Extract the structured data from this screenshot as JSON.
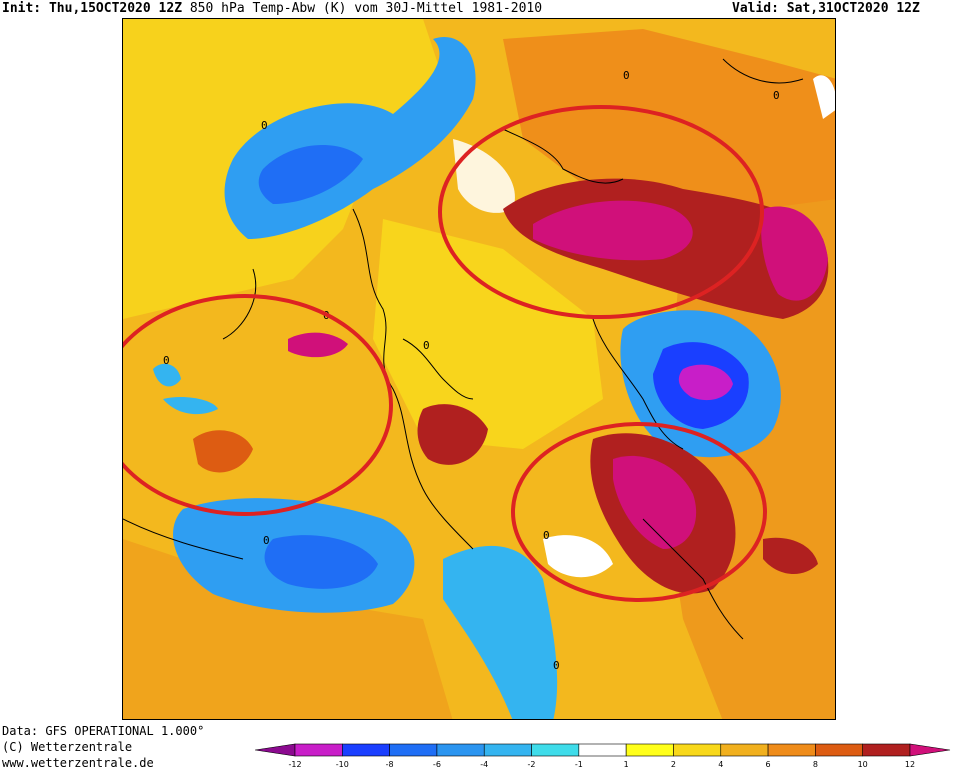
{
  "header": {
    "init_label": "Init:",
    "init_value": "Thu,15OCT2020 12Z",
    "title": "850 hPa Temp-Abw (K) vom 30J-Mittel 1981-2010",
    "valid": "Valid: Sat,31OCT2020 12Z"
  },
  "footer": {
    "line1": "Data: GFS OPERATIONAL 1.000°",
    "line2": "(C) Wetterzentrale",
    "line3": "www.wetterzentrale.de"
  },
  "colorbar": {
    "ticks": [
      "-12",
      "-10",
      "-8",
      "-6",
      "-4",
      "-2",
      "-1",
      "1",
      "2",
      "4",
      "6",
      "8",
      "10",
      "12"
    ],
    "colors": [
      "#8b0a8f",
      "#c81ec8",
      "#1a3fff",
      "#1f6ef5",
      "#2b95f0",
      "#34b4f0",
      "#3fdcea",
      "#ffffff",
      "#ffff1a",
      "#f8d81a",
      "#f1b01e",
      "#ef8c1a",
      "#dd5c12",
      "#b0201f",
      "#d0107a"
    ]
  },
  "map": {
    "contour_label": "0",
    "highlight_color": "#dd2222",
    "highlights": [
      "north-asia-warm-anomaly",
      "north-america-warm-anomaly",
      "europe-warm-anomaly"
    ]
  }
}
